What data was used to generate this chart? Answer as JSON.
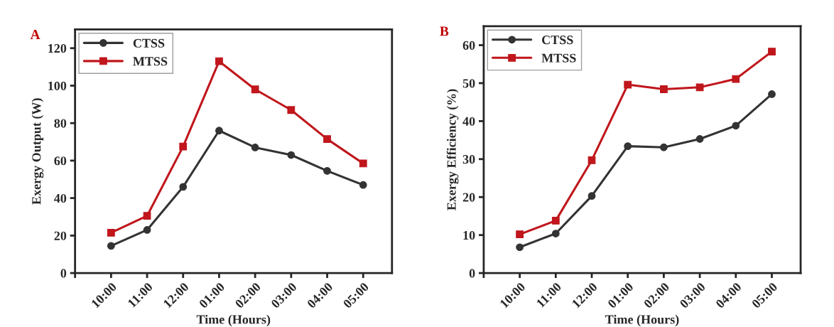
{
  "chart_data": [
    {
      "type": "line",
      "xlabel": "Time (Hours)",
      "ylabel": "Exergy Output (W)",
      "annotations": [
        "A"
      ],
      "categories": [
        "10:00",
        "11:00",
        "12:00",
        "01:00",
        "02:00",
        "03:00",
        "04:00",
        "05:00"
      ],
      "series": [
        {
          "name": "CTSS",
          "color": "#333333",
          "marker": "circle",
          "values": [
            14.5,
            23,
            46,
            76,
            67,
            63,
            54.5,
            47
          ]
        },
        {
          "name": "MTSS",
          "color": "#c0161c",
          "marker": "square",
          "values": [
            21.5,
            30.5,
            67.5,
            113,
            98,
            87,
            71.5,
            58.5
          ]
        }
      ],
      "ylim": [
        0,
        130
      ],
      "yticks": [
        0,
        20,
        40,
        60,
        80,
        100,
        120
      ],
      "grid": false,
      "legend": "top left",
      "line_style": "solid"
    },
    {
      "type": "line",
      "xlabel": "Time (Hours)",
      "ylabel": "Exergy Efficiency (%)",
      "annotations": [
        "B"
      ],
      "categories": [
        "10:00",
        "11:00",
        "12:00",
        "01:00",
        "02:00",
        "03:00",
        "04:00",
        "05:00"
      ],
      "series": [
        {
          "name": "CTSS",
          "color": "#333333",
          "marker": "circle",
          "values": [
            6.8,
            10.4,
            20.3,
            33.4,
            33.1,
            35.3,
            38.8,
            47.1
          ]
        },
        {
          "name": "MTSS",
          "color": "#c0161c",
          "marker": "square",
          "values": [
            10.2,
            13.8,
            29.7,
            49.6,
            48.4,
            48.9,
            51.1,
            58.3
          ]
        }
      ],
      "ylim": [
        0,
        65
      ],
      "yticks": [
        0,
        10,
        20,
        30,
        40,
        50,
        60
      ],
      "grid": false,
      "legend": "top left",
      "line_style": "solid"
    }
  ]
}
